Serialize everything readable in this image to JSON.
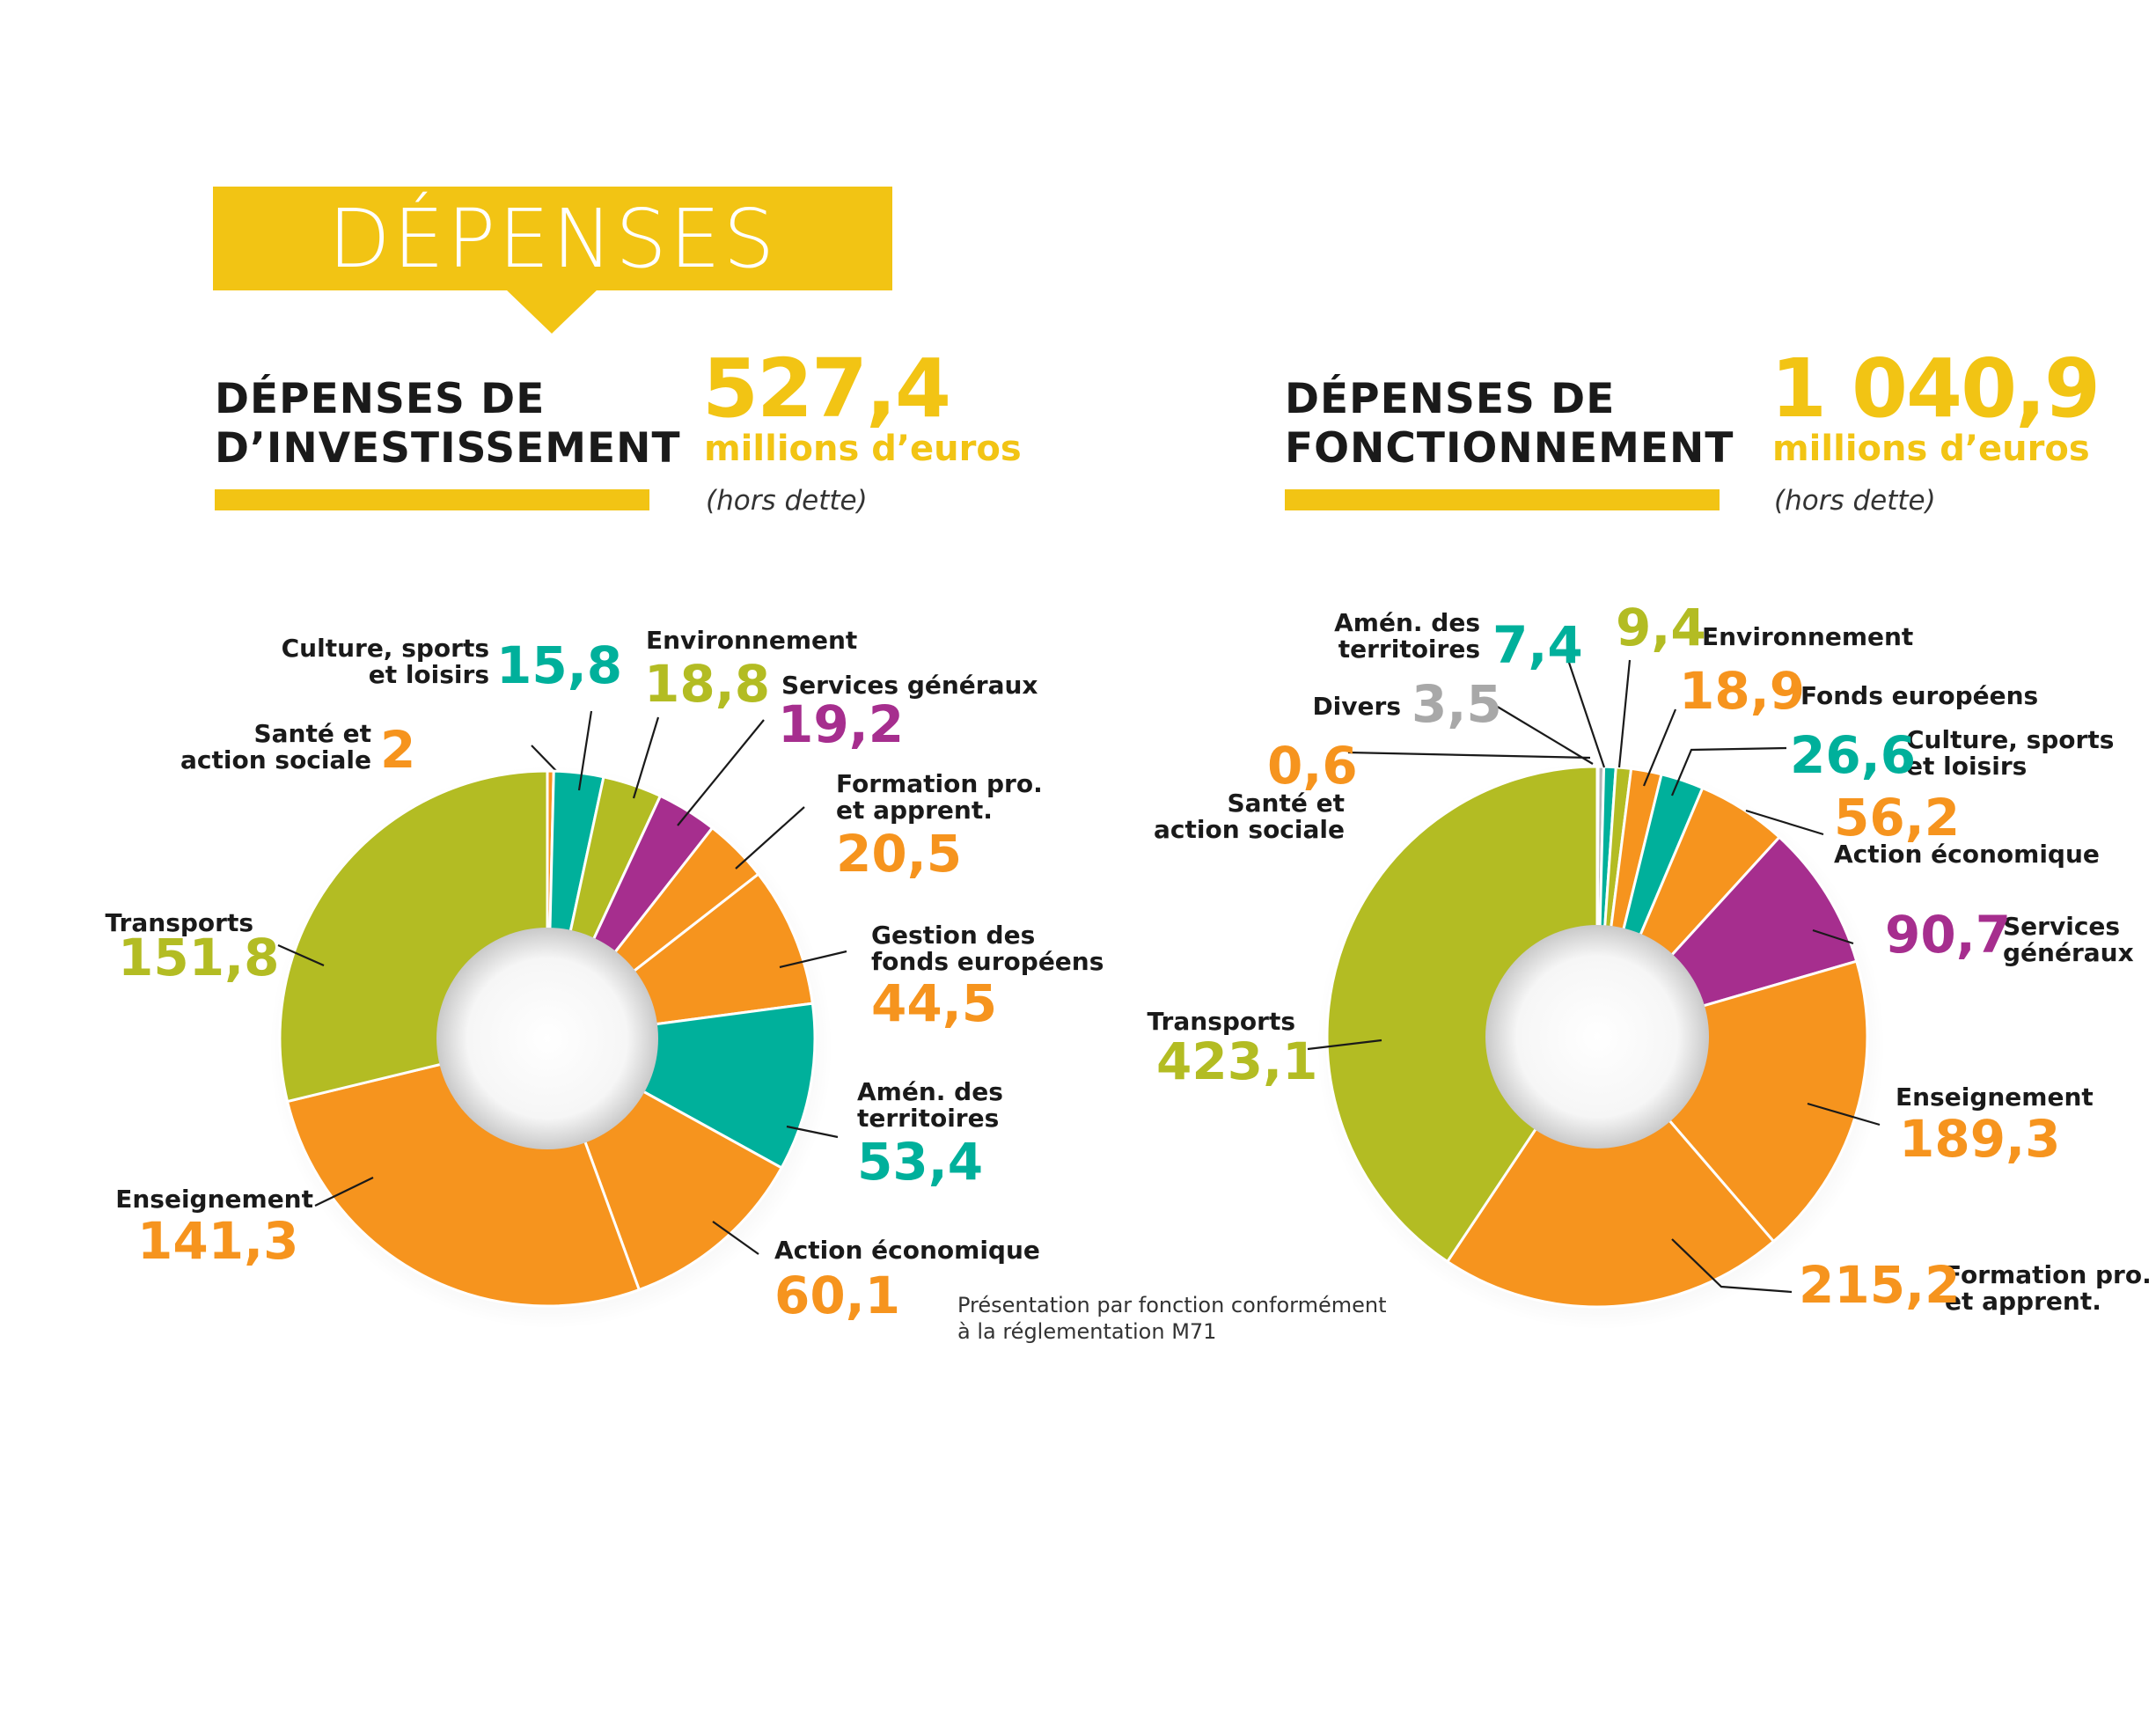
{
  "header": {
    "banner_title": "DÉPENSES"
  },
  "investissement": {
    "title_line1": "DÉPENSES DE",
    "title_line2": "D’INVESTISSEMENT",
    "total": "527,4",
    "unit": "millions d’euros",
    "note": "(hors dette)"
  },
  "fonctionnement": {
    "title_line1": "DÉPENSES DE",
    "title_line2": "FONCTIONNEMENT",
    "total": "1 040,9",
    "unit": "millions d’euros",
    "note": "(hors dette)"
  },
  "footnote": "Présentation par fonction conformément\nà la réglementation M71",
  "colors": {
    "yellow": "#f2c414",
    "green": "#b3bc23",
    "teal": "#00b09b",
    "purple": "#a62e8e",
    "orange": "#f6941e",
    "grey": "#b5b5b5"
  },
  "chart_data": [
    {
      "type": "donut",
      "title": "DÉPENSES DE D’INVESTISSEMENT",
      "total": 527.4,
      "unit": "millions d’euros",
      "slices": [
        {
          "label": "Santé et action sociale",
          "value": 2,
          "value_text": "2",
          "color": "#f6941e"
        },
        {
          "label": "Culture, sports et loisirs",
          "value": 15.8,
          "value_text": "15,8",
          "color": "#00b09b"
        },
        {
          "label": "Environnement",
          "value": 18.8,
          "value_text": "18,8",
          "color": "#b3bc23"
        },
        {
          "label": "Services généraux",
          "value": 19.2,
          "value_text": "19,2",
          "color": "#a62e8e"
        },
        {
          "label": "Formation pro. et apprent.",
          "value": 20.5,
          "value_text": "20,5",
          "color": "#f6941e"
        },
        {
          "label": "Gestion des fonds européens",
          "value": 44.5,
          "value_text": "44,5",
          "color": "#f6941e"
        },
        {
          "label": "Amén. des territoires",
          "value": 53.4,
          "value_text": "53,4",
          "color": "#00b09b"
        },
        {
          "label": "Action économique",
          "value": 60.1,
          "value_text": "60,1",
          "color": "#f6941e"
        },
        {
          "label": "Enseignement",
          "value": 141.3,
          "value_text": "141,3",
          "color": "#f6941e"
        },
        {
          "label": "Transports",
          "value": 151.8,
          "value_text": "151,8",
          "color": "#b3bc23"
        }
      ]
    },
    {
      "type": "donut",
      "title": "DÉPENSES DE FONCTIONNEMENT",
      "total": 1040.9,
      "unit": "millions d’euros",
      "slices": [
        {
          "label": "Santé et action sociale",
          "value": 0.6,
          "value_text": "0,6",
          "color": "#f6941e"
        },
        {
          "label": "Divers",
          "value": 3.5,
          "value_text": "3,5",
          "color": "#b5b5b5"
        },
        {
          "label": "Amén. des territoires",
          "value": 7.4,
          "value_text": "7,4",
          "color": "#00b09b"
        },
        {
          "label": "Environnement",
          "value": 9.4,
          "value_text": "9,4",
          "color": "#b3bc23"
        },
        {
          "label": "Fonds européens",
          "value": 18.9,
          "value_text": "18,9",
          "color": "#f6941e"
        },
        {
          "label": "Culture, sports et loisirs",
          "value": 26.6,
          "value_text": "26,6",
          "color": "#00b09b"
        },
        {
          "label": "Action économique",
          "value": 56.2,
          "value_text": "56,2",
          "color": "#f6941e"
        },
        {
          "label": "Services généraux",
          "value": 90.7,
          "value_text": "90,7",
          "color": "#a62e8e"
        },
        {
          "label": "Enseignement",
          "value": 189.3,
          "value_text": "189,3",
          "color": "#f6941e"
        },
        {
          "label": "Formation pro. et apprent.",
          "value": 215.2,
          "value_text": "215,2",
          "color": "#f6941e"
        },
        {
          "label": "Transports",
          "value": 423.1,
          "value_text": "423,1",
          "color": "#b3bc23"
        }
      ]
    }
  ]
}
